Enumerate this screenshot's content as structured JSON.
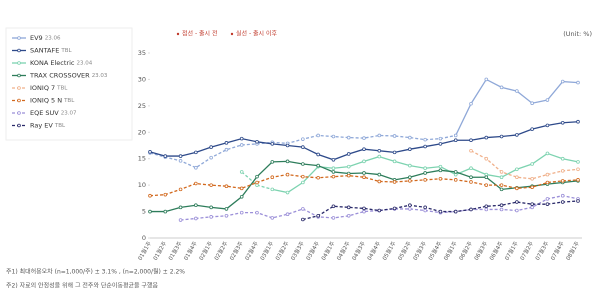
{
  "chart_data": {
    "type": "line",
    "unit_label": "(Unit: %)",
    "notes": [
      "점선 - 출시 전",
      "실선 - 출시 이후"
    ],
    "footnotes": [
      "주1) 최대허용오차 (n=1,000/주) ± 3.1% , (n=2,000/월) ± 2.2%",
      "주2) 자료의 안정성을 위해 그 전주와 단순이동평균을 구했음"
    ],
    "categories": [
      "01월1주",
      "01월2주",
      "01월3주",
      "01월4주",
      "02월1주",
      "02월2주",
      "02월3주",
      "02월4주",
      "03월1주",
      "03월2주",
      "03월3주",
      "03월4주",
      "04월1주",
      "04월2주",
      "04월3주",
      "04월4주",
      "05월1주",
      "05월2주",
      "05월3주",
      "05월4주",
      "06월1주",
      "06월2주",
      "06월3주",
      "06월4주",
      "07월1주",
      "07월2주",
      "07월3주",
      "07월4주",
      "08월1주"
    ],
    "ylim": [
      0,
      35
    ],
    "yticks": [
      0,
      5,
      10,
      15,
      20,
      25,
      30,
      35
    ],
    "grid": false,
    "series": [
      {
        "name": "EV9",
        "tag": "23.06",
        "color": "#8fa8d8",
        "solid_from": 20,
        "values": [
          16.1,
          15.3,
          14.6,
          13.3,
          15.2,
          16.7,
          17.6,
          17.8,
          18.1,
          17.9,
          18.7,
          19.4,
          19.2,
          19,
          18.9,
          19.4,
          19.3,
          19,
          18.6,
          18.8,
          19.4,
          25.4,
          30,
          28.5,
          27.8,
          25.5,
          26.1,
          29.6,
          29.4
        ]
      },
      {
        "name": "SANTAFE",
        "tag": "TBL",
        "color": "#2e4a8a",
        "solid_from": 0,
        "values": [
          16.3,
          15.5,
          15.5,
          16.2,
          17.2,
          18,
          18.8,
          18.2,
          17.8,
          17.5,
          17.2,
          15.8,
          14.8,
          15.9,
          16.8,
          16.5,
          16.2,
          16.8,
          17.3,
          17.8,
          18.5,
          18.5,
          19,
          19.2,
          19.5,
          20.6,
          21.3,
          21.8,
          22
        ]
      },
      {
        "name": "KONA Electric",
        "tag": "23.04",
        "color": "#7dd3b0",
        "solid_from": 8,
        "values": [
          null,
          null,
          null,
          null,
          null,
          null,
          12.5,
          10,
          9.2,
          8.6,
          10.5,
          13.5,
          13.2,
          13.5,
          14.5,
          15.4,
          14.5,
          13.7,
          13.2,
          13.5,
          12,
          13.2,
          12,
          11.5,
          13,
          14,
          16,
          15,
          14.4
        ]
      },
      {
        "name": "TRAX CROSSOVER",
        "tag": "23.03",
        "color": "#2e7d5b",
        "solid_from": 0,
        "values": [
          5,
          5,
          5.8,
          6.2,
          5.8,
          5.5,
          7.8,
          11.6,
          14.4,
          14.5,
          14,
          13.7,
          12.5,
          12.2,
          12.3,
          12,
          11,
          11.5,
          12.3,
          12.8,
          12.5,
          11.5,
          11.5,
          9.2,
          9.5,
          9.8,
          10.2,
          10.5,
          10.8
        ]
      },
      {
        "name": "IONIQ 7",
        "tag": "TBL",
        "color": "#f0b08a",
        "values": [
          null,
          null,
          null,
          null,
          null,
          null,
          null,
          null,
          null,
          null,
          null,
          null,
          null,
          null,
          null,
          null,
          null,
          null,
          null,
          null,
          null,
          16.5,
          15,
          12.5,
          11.5,
          11.2,
          12,
          12.7,
          13
        ]
      },
      {
        "name": "IONIQ 5 N",
        "tag": "TBL",
        "color": "#d2691e",
        "values": [
          8,
          8.2,
          9.2,
          10.3,
          10,
          9.8,
          9.4,
          10.5,
          11.5,
          12,
          11.6,
          11.4,
          11.6,
          11.8,
          11.5,
          10.7,
          10.6,
          10.8,
          11,
          11.2,
          11,
          10.6,
          10,
          10,
          9.4,
          9.6,
          10.5,
          10.8,
          11
        ]
      },
      {
        "name": "EQE SUV",
        "tag": "23.07",
        "color": "#9b8fd8",
        "values": [
          null,
          null,
          3.4,
          3.7,
          4,
          4.2,
          4.8,
          4.8,
          3.8,
          4.5,
          5.5,
          4,
          3.8,
          4.2,
          5,
          5.2,
          5.5,
          5.5,
          5.2,
          4.8,
          5,
          5.4,
          5.4,
          5.4,
          5.2,
          5.8,
          7.4,
          8,
          7.4
        ]
      },
      {
        "name": "Ray EV",
        "tag": "TBL",
        "color": "#2a2a6a",
        "values": [
          null,
          null,
          null,
          null,
          null,
          null,
          null,
          null,
          null,
          null,
          3.5,
          4.2,
          6,
          5.8,
          5.6,
          5.2,
          5.6,
          6.2,
          5.8,
          5,
          5,
          5.4,
          6,
          6.2,
          6.8,
          6.4,
          6.4,
          6.8,
          7
        ]
      }
    ]
  }
}
